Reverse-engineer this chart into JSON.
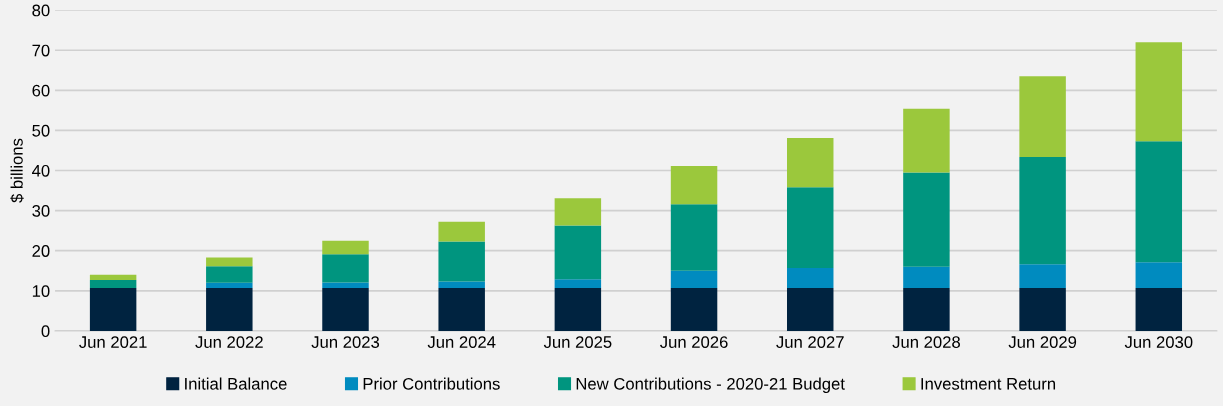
{
  "chart_data": {
    "type": "bar",
    "stacked": true,
    "ylabel": "$ billions",
    "categories": [
      "Jun 2021",
      "Jun 2022",
      "Jun 2023",
      "Jun 2024",
      "Jun 2025",
      "Jun 2026",
      "Jun 2027",
      "Jun 2028",
      "Jun 2029",
      "Jun 2030"
    ],
    "series": [
      {
        "name": "Initial Balance",
        "color": "#002340",
        "values": [
          10.7,
          10.7,
          10.7,
          10.7,
          10.7,
          10.7,
          10.7,
          10.7,
          10.7,
          10.7
        ]
      },
      {
        "name": "Prior Contributions",
        "color": "#008bbf",
        "values": [
          0,
          1.3,
          1.4,
          1.6,
          2.2,
          4.3,
          5.0,
          5.3,
          5.9,
          6.4
        ]
      },
      {
        "name": "New Contributions - 2020-21 Budget",
        "color": "#00957f",
        "values": [
          2.0,
          4.1,
          7.0,
          10.0,
          13.4,
          16.6,
          20.1,
          23.5,
          26.8,
          30.2
        ]
      },
      {
        "name": "Investment Return",
        "color": "#9bc83c",
        "values": [
          1.3,
          2.2,
          3.4,
          4.9,
          6.8,
          9.5,
          12.3,
          15.9,
          20.1,
          24.7
        ]
      }
    ],
    "ylim": [
      0,
      80
    ],
    "yticks": [
      0,
      10,
      20,
      30,
      40,
      50,
      60,
      70,
      80
    ],
    "grid": "y",
    "legend": "bottom"
  }
}
